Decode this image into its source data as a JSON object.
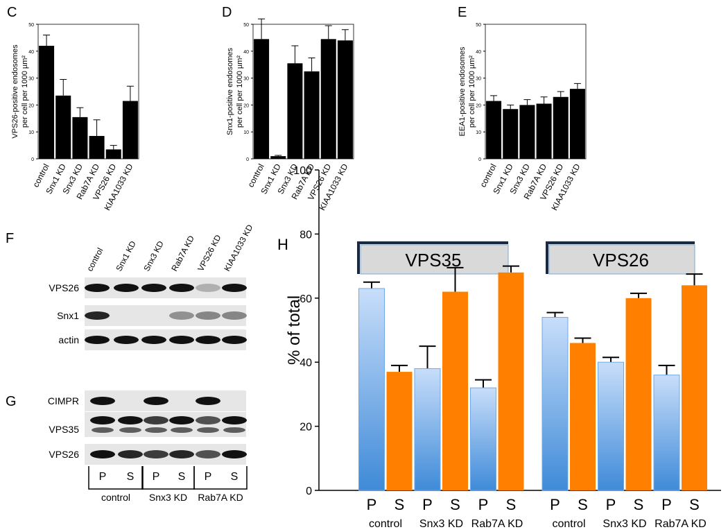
{
  "chart_data": [
    {
      "type": "bar",
      "panel": "C",
      "ylabel": [
        "VPS26-positive endosomes",
        "per cell per 1000 µm²"
      ],
      "categories": [
        "control",
        "Snx1 KD",
        "Snx3 KD",
        "Rab7A KD",
        "VPS26 KD",
        "KIAA1033 KD"
      ],
      "values": [
        42,
        23.5,
        15.5,
        8.5,
        3.5,
        21.5
      ],
      "errors": [
        4,
        6,
        3.5,
        6,
        1.5,
        5.5
      ],
      "color": "#000000",
      "ylim": [
        0,
        50
      ],
      "yticks": [
        0,
        10,
        20,
        30,
        40,
        50
      ]
    },
    {
      "type": "bar",
      "panel": "D",
      "ylabel": [
        "Snx1-positive endosomes",
        "per cell per 1000 µm²"
      ],
      "categories": [
        "control",
        "Snx1 KD",
        "Snx3 KD",
        "Rab7A KD",
        "VPS26 KD",
        "KIAA1033 KD"
      ],
      "values": [
        44.5,
        1,
        35.5,
        32.5,
        44.5,
        44
      ],
      "errors": [
        7.5,
        0.3,
        6.5,
        5,
        5,
        4
      ],
      "color": "#000000",
      "ylim": [
        0,
        50
      ],
      "yticks": [
        0,
        10,
        20,
        30,
        40,
        50
      ]
    },
    {
      "type": "bar",
      "panel": "E",
      "ylabel": [
        "EEA1-positive endosomes",
        "per cell per 1000 µm²"
      ],
      "categories": [
        "control",
        "Snx1 KD",
        "Snx3 KD",
        "Rab7A KD",
        "VPS26 KD",
        "KIAA1033 KD"
      ],
      "values": [
        21.5,
        18.5,
        20,
        20.5,
        23,
        26
      ],
      "errors": [
        2,
        1.5,
        2,
        2.5,
        2,
        2
      ],
      "color": "#000000",
      "ylim": [
        0,
        50
      ],
      "yticks": [
        0,
        10,
        20,
        30,
        40,
        50
      ]
    },
    {
      "type": "grouped_bar",
      "panel": "H",
      "ylabel": "% of total",
      "groups": [
        "VPS35",
        "VPS26"
      ],
      "categories": [
        "control",
        "Snx3 KD",
        "Rab7A KD",
        "control",
        "Snx3 KD",
        "Rab7A KD"
      ],
      "series": [
        {
          "name": "P",
          "color": "#6ea8e8",
          "values": [
            63,
            38,
            32,
            54,
            40,
            36
          ],
          "errors": [
            2,
            7,
            2.5,
            1.5,
            1.5,
            3
          ]
        },
        {
          "name": "S",
          "color": "#ff8000",
          "values": [
            37,
            62,
            68,
            46,
            60,
            64
          ],
          "errors": [
            2,
            7.5,
            2,
            1.5,
            1.5,
            3.5
          ]
        }
      ],
      "ylim": [
        0,
        100
      ],
      "yticks": [
        0,
        20,
        40,
        60,
        80,
        100
      ]
    }
  ],
  "blots": {
    "F": {
      "panel": "F",
      "lanes": [
        "control",
        "Snx1 KD",
        "Snx3 KD",
        "Rab7A KD",
        "VPS26 KD",
        "KIAA1033 KD"
      ],
      "rows": [
        "VPS26",
        "Snx1",
        "actin"
      ]
    },
    "G": {
      "panel": "G",
      "rows": [
        "CIMPR",
        "VPS35",
        "VPS26"
      ],
      "lanes": [
        "P",
        "S",
        "P",
        "S",
        "P",
        "S"
      ],
      "groups": [
        "control",
        "Snx3 KD",
        "Rab7A KD"
      ]
    }
  }
}
